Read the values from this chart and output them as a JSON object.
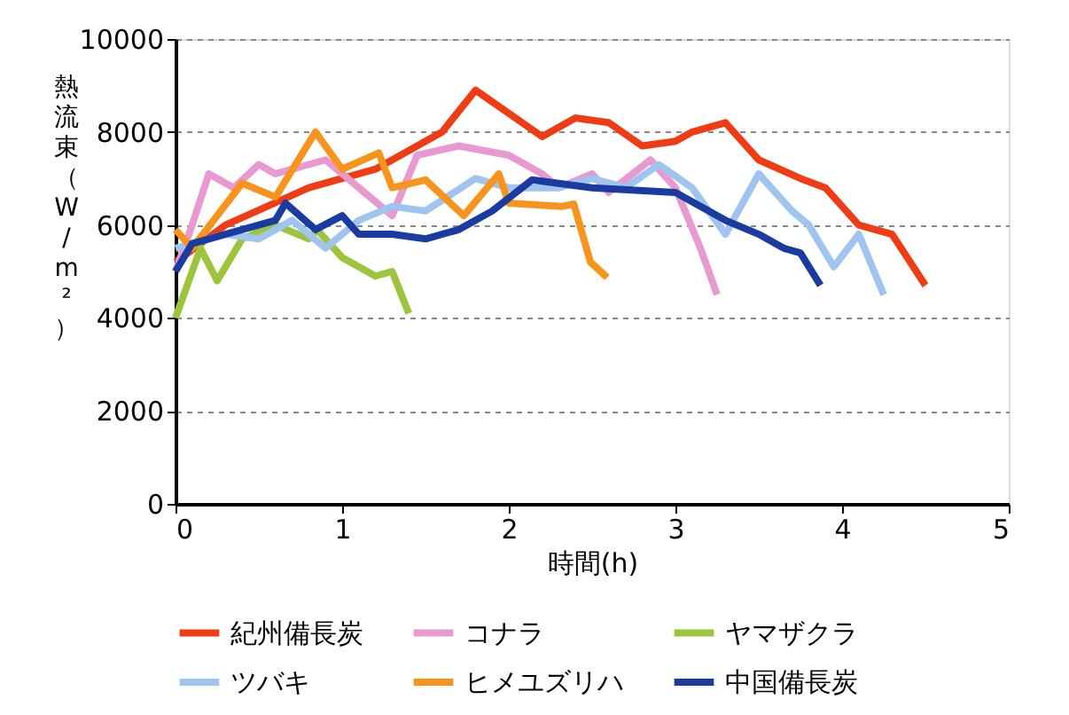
{
  "chart_data": {
    "type": "line",
    "xlabel": "時間(h)",
    "ylabel": "熱流束（W/m²）",
    "xlim": [
      0,
      5
    ],
    "xticks": [
      0,
      1,
      2,
      3,
      4,
      5
    ],
    "ylim": [
      0,
      10000
    ],
    "yticks": [
      0,
      2000,
      4000,
      6000,
      8000,
      10000
    ],
    "grid": "y",
    "legend": "bottom",
    "line_style": "solid",
    "marker": "none",
    "series": [
      {
        "name": "紀州備長炭",
        "color": "#f03c14",
        "x": [
          0,
          0.3,
          0.8,
          1.2,
          1.4,
          1.6,
          1.8,
          2.0,
          2.2,
          2.4,
          2.6,
          2.8,
          3.0,
          3.1,
          3.3,
          3.5,
          3.75,
          3.9,
          4.1,
          4.3,
          4.5
        ],
        "values": [
          5200,
          6000,
          6800,
          7200,
          7600,
          8000,
          8900,
          8400,
          7900,
          8300,
          8200,
          7700,
          7800,
          8000,
          8200,
          7400,
          7000,
          6800,
          6000,
          5800,
          4700
        ]
      },
      {
        "name": "コナラ",
        "color": "#e89ad0",
        "x": [
          0,
          0.1,
          0.2,
          0.35,
          0.5,
          0.6,
          0.9,
          1.1,
          1.3,
          1.45,
          1.7,
          2.0,
          2.2,
          2.3,
          2.5,
          2.6,
          2.85,
          3.0,
          3.15,
          3.25
        ],
        "values": [
          5000,
          6000,
          7100,
          6800,
          7300,
          7100,
          7400,
          6800,
          6200,
          7500,
          7700,
          7500,
          7100,
          6800,
          7100,
          6700,
          7400,
          6800,
          5500,
          4500
        ]
      },
      {
        "name": "ヤマザクラ",
        "color": "#9cc43c",
        "x": [
          0,
          0.1,
          0.15,
          0.25,
          0.4,
          0.6,
          0.8,
          0.85,
          1.0,
          1.2,
          1.3,
          1.4
        ],
        "values": [
          4000,
          5000,
          5500,
          4800,
          5700,
          6000,
          5700,
          5900,
          5300,
          4900,
          5000,
          4100
        ]
      },
      {
        "name": "ツバキ",
        "color": "#a0c4f0",
        "x": [
          0,
          0.3,
          0.5,
          0.7,
          0.9,
          1.1,
          1.3,
          1.5,
          1.8,
          2.0,
          2.3,
          2.5,
          2.7,
          2.9,
          3.1,
          3.3,
          3.5,
          3.7,
          3.8,
          3.95,
          4.1,
          4.25
        ],
        "values": [
          5500,
          5800,
          5700,
          6100,
          5500,
          6100,
          6400,
          6300,
          7000,
          6800,
          6800,
          7000,
          6800,
          7300,
          6800,
          5800,
          7100,
          6300,
          6000,
          5100,
          5800,
          4500
        ]
      },
      {
        "name": "ヒメユズリハ",
        "color": "#f7941d",
        "x": [
          0,
          0.1,
          0.25,
          0.4,
          0.6,
          0.84,
          1.0,
          1.22,
          1.3,
          1.5,
          1.73,
          1.94,
          2.0,
          2.32,
          2.39,
          2.49,
          2.59
        ],
        "values": [
          5900,
          5500,
          6200,
          6900,
          6600,
          8000,
          7200,
          7550,
          6800,
          6970,
          6200,
          7100,
          6470,
          6400,
          6450,
          5200,
          4870
        ]
      },
      {
        "name": "中国備長炭",
        "color": "#1a3ca0",
        "x": [
          0,
          0.1,
          0.4,
          0.6,
          0.66,
          0.84,
          1.0,
          1.1,
          1.3,
          1.5,
          1.7,
          1.9,
          2.14,
          2.5,
          3.0,
          3.3,
          3.5,
          3.65,
          3.75,
          3.87
        ],
        "values": [
          5000,
          5600,
          5900,
          6100,
          6470,
          5900,
          6200,
          5800,
          5800,
          5700,
          5900,
          6300,
          6970,
          6800,
          6700,
          6100,
          5800,
          5500,
          5400,
          4700
        ]
      }
    ]
  }
}
